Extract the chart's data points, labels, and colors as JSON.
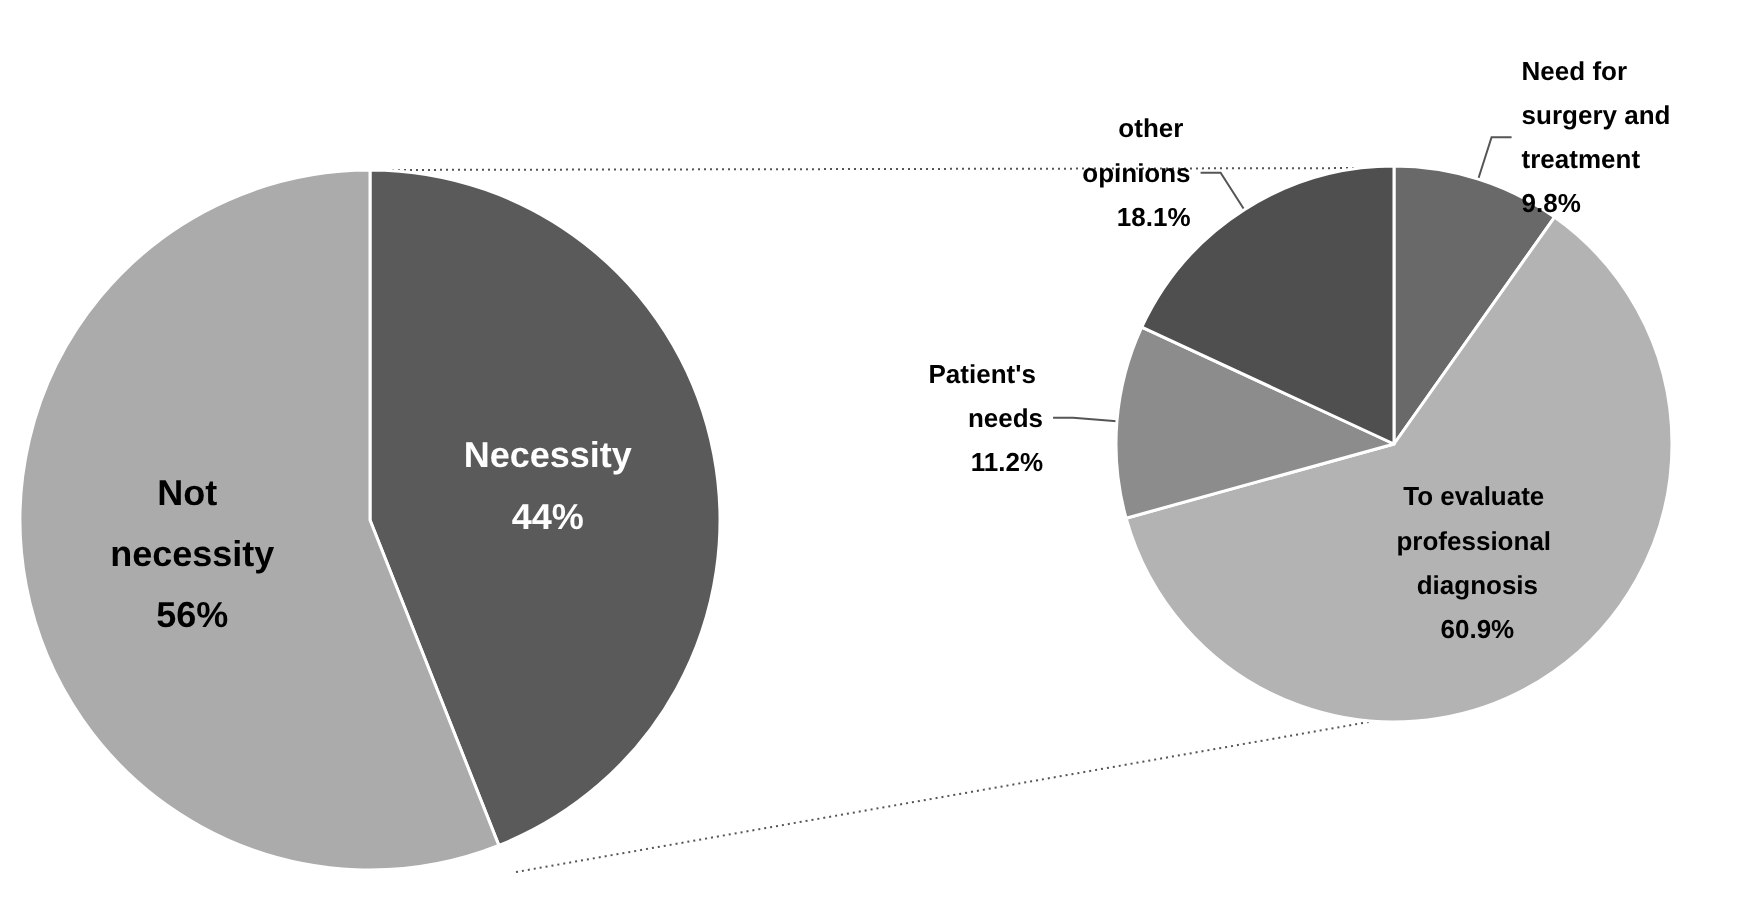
{
  "chart_data": [
    {
      "type": "pie",
      "categories": [
        "Necessity",
        "Not necessity"
      ],
      "values": [
        44,
        56
      ],
      "colors": [
        "#5a5a5a",
        "#ababab"
      ],
      "value_labels": [
        "44%",
        "56%"
      ]
    },
    {
      "type": "pie",
      "categories": [
        "Need for surgery and treatment",
        "To evaluate professional diagnosis",
        "Patient's needs",
        "other opinions"
      ],
      "values": [
        9.8,
        60.9,
        11.2,
        18.1
      ],
      "colors": [
        "#696969",
        "#b3b3b3",
        "#8c8c8c",
        "#4f4f4f"
      ],
      "value_labels": [
        "9.8%",
        "60.9%",
        "11.2%",
        "18.1%"
      ]
    }
  ]
}
